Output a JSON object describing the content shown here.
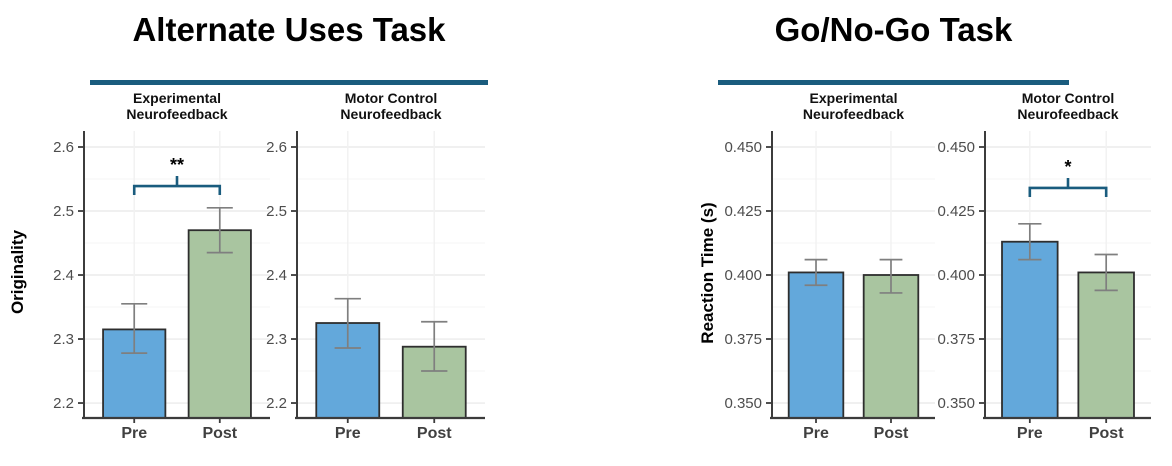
{
  "colors": {
    "pre_bar": "#63A8DB",
    "post_bar": "#A9C5A0",
    "bar_border": "#2E2E2E",
    "error_bar": "#7F7F7F",
    "accent_teal": "#1A5C7E",
    "grid_major": "#ECECEC",
    "grid_minor": "#F6F6F6",
    "grid_vertical": "#F1F1F1",
    "axis_line": "#3C3C3C",
    "tick_text": "#4D4D4D",
    "axis_text": "#404040",
    "significance_text": "#000000"
  },
  "chart_data": [
    {
      "type": "bar",
      "title": "Alternate Uses Task",
      "ylabel": "Originality",
      "categories": [
        "Pre",
        "Post"
      ],
      "yticks": [
        2.2,
        2.3,
        2.4,
        2.5,
        2.6
      ],
      "ytick_labels": [
        "2.2",
        "2.3",
        "2.4",
        "2.5",
        "2.6"
      ],
      "ylim": [
        2.1766,
        2.625
      ],
      "grid": true,
      "legend": "none",
      "facets": [
        {
          "label": "Experimental\nNeurofeedback",
          "bars": [
            {
              "category": "Pre",
              "value": 2.315,
              "err_low": 2.278,
              "err_high": 2.355
            },
            {
              "category": "Post",
              "value": 2.47,
              "err_low": 2.435,
              "err_high": 2.505
            }
          ],
          "significance": {
            "label": "**",
            "y": 2.539
          }
        },
        {
          "label": "Motor Control\nNeurofeedback",
          "bars": [
            {
              "category": "Pre",
              "value": 2.325,
              "err_low": 2.286,
              "err_high": 2.363
            },
            {
              "category": "Post",
              "value": 2.288,
              "err_low": 2.25,
              "err_high": 2.327
            }
          ],
          "significance": null
        }
      ]
    },
    {
      "type": "bar",
      "title": "Go/No-Go Task",
      "ylabel": "Reaction Time (s)",
      "categories": [
        "Pre",
        "Post"
      ],
      "yticks": [
        0.35,
        0.375,
        0.4,
        0.425,
        0.45
      ],
      "ytick_labels": [
        "0.350",
        "0.375",
        "0.400",
        "0.425",
        "0.450"
      ],
      "ylim": [
        0.34414,
        0.45625
      ],
      "grid": true,
      "legend": "none",
      "facets": [
        {
          "label": "Experimental\nNeurofeedback",
          "bars": [
            {
              "category": "Pre",
              "value": 0.401,
              "err_low": 0.396,
              "err_high": 0.406
            },
            {
              "category": "Post",
              "value": 0.4,
              "err_low": 0.393,
              "err_high": 0.406
            }
          ],
          "significance": null
        },
        {
          "label": "Motor Control\nNeurofeedback",
          "bars": [
            {
              "category": "Pre",
              "value": 0.413,
              "err_low": 0.406,
              "err_high": 0.42
            },
            {
              "category": "Post",
              "value": 0.401,
              "err_low": 0.394,
              "err_high": 0.408
            }
          ],
          "significance": {
            "label": "*",
            "y": 0.434
          }
        }
      ]
    }
  ]
}
